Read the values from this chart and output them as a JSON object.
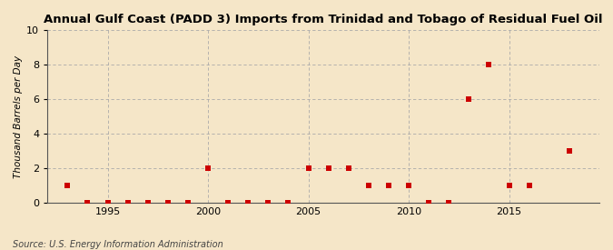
{
  "title": "Annual Gulf Coast (PADD 3) Imports from Trinidad and Tobago of Residual Fuel Oil",
  "ylabel": "Thousand Barrels per Day",
  "source": "Source: U.S. Energy Information Administration",
  "background_color": "#f5e6c8",
  "plot_background_color": "#f5e6c8",
  "marker_color": "#cc0000",
  "marker_size": 4,
  "xlim": [
    1992,
    2019.5
  ],
  "ylim": [
    0,
    10
  ],
  "yticks": [
    0,
    2,
    4,
    6,
    8,
    10
  ],
  "xticks": [
    1995,
    2000,
    2005,
    2010,
    2015
  ],
  "years": [
    1993,
    1994,
    1995,
    1996,
    1997,
    1998,
    1999,
    2000,
    2001,
    2002,
    2003,
    2004,
    2005,
    2006,
    2007,
    2008,
    2009,
    2010,
    2011,
    2012,
    2013,
    2014,
    2015,
    2016,
    2018
  ],
  "values": [
    1,
    0,
    0,
    0,
    0,
    0,
    0,
    2,
    0,
    0,
    0,
    0,
    2,
    2,
    2,
    1,
    1,
    1,
    0,
    0,
    6,
    8,
    1,
    1,
    3
  ],
  "vgrid_positions": [
    1995,
    2000,
    2005,
    2010,
    2015
  ]
}
